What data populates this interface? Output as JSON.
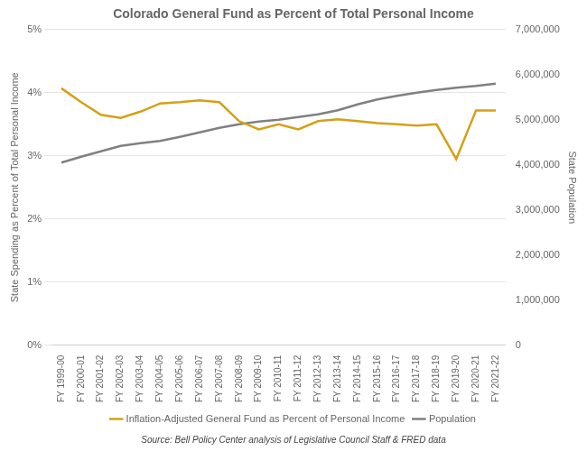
{
  "chart_data": {
    "type": "line",
    "title": "Colorado General Fund as Percent of Total Personal Income",
    "ylabel": "State Spending as Percent of Total Personal Income",
    "y2label": "State Population",
    "annotations": [
      "Source: Bell Policy Center analysis of Legislative Council Staff & FRED data"
    ],
    "categories": [
      "FY 1999-00",
      "FY 2000-01",
      "FY 2001-02",
      "FY 2002-03",
      "FY 2003-04",
      "FY 2004-05",
      "FY 2005-06",
      "FY 2006-07",
      "FY 2007-08",
      "FY 2008-09",
      "FY 2009-10",
      "FY 2010-11",
      "FY 2011-12",
      "FY 2012-13",
      "FY 2013-14",
      "FY 2014-15",
      "FY 2015-16",
      "FY 2016-17",
      "FY 2017-18",
      "FY 2018-19",
      "FY 2019-20",
      "FY 2020-21",
      "FY 2021-22"
    ],
    "series": [
      {
        "name": "Inflation-Adjusted General Fund as Percent of Personal Income",
        "color": "#D4A017",
        "axis": "y",
        "values": [
          4.07,
          3.85,
          3.65,
          3.6,
          3.7,
          3.83,
          3.85,
          3.88,
          3.85,
          3.55,
          3.42,
          3.5,
          3.42,
          3.55,
          3.58,
          3.55,
          3.52,
          3.5,
          3.48,
          3.5,
          2.95,
          3.72,
          3.72
        ]
      },
      {
        "name": "Population",
        "color": "#808080",
        "axis": "y2",
        "values": [
          4050000,
          4180000,
          4300000,
          4420000,
          4480000,
          4530000,
          4620000,
          4720000,
          4820000,
          4900000,
          4960000,
          5000000,
          5060000,
          5120000,
          5210000,
          5340000,
          5450000,
          5530000,
          5600000,
          5660000,
          5710000,
          5750000,
          5800000
        ]
      }
    ],
    "ylim": [
      0,
      5
    ],
    "yticks": [
      {
        "value": 0,
        "label": "0%"
      },
      {
        "value": 1,
        "label": "1%"
      },
      {
        "value": 2,
        "label": "2%"
      },
      {
        "value": 3,
        "label": "3%"
      },
      {
        "value": 4,
        "label": "4%"
      },
      {
        "value": 5,
        "label": "5%"
      }
    ],
    "y2lim": [
      0,
      7000000
    ],
    "y2ticks": [
      0,
      {
        "value": 1000000,
        "label": "1,000,000"
      },
      {
        "value": 2000000,
        "label": "2,000,000"
      },
      {
        "value": 3000000,
        "label": "3,000,000"
      },
      {
        "value": 4000000,
        "label": "4,000,000"
      },
      {
        "value": 5000000,
        "label": "5,000,000"
      },
      {
        "value": 6000000,
        "label": "6,000,000"
      },
      {
        "value": 7000000,
        "label": "7,000,000"
      }
    ],
    "grid": true,
    "legend": "bottom"
  }
}
